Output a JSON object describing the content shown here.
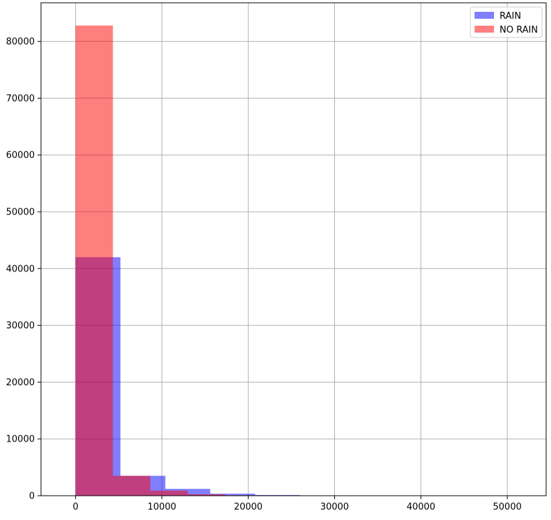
{
  "chart_data": {
    "type": "bar",
    "histogram": true,
    "overlay": true,
    "title": "",
    "xlabel": "",
    "ylabel": "",
    "xlim": [
      -4000,
      54500
    ],
    "ylim": [
      0,
      86800
    ],
    "xticks": [
      0,
      10000,
      20000,
      30000,
      40000,
      50000
    ],
    "yticks": [
      0,
      10000,
      20000,
      30000,
      40000,
      50000,
      60000,
      70000,
      80000
    ],
    "grid": true,
    "legend_position": "top-right",
    "series": [
      {
        "name": "RAIN",
        "color": "#0000ff",
        "alpha": 0.5,
        "bins": [
          {
            "x0": 0,
            "x1": 5200,
            "count": 42000
          },
          {
            "x0": 5200,
            "x1": 10400,
            "count": 3500
          },
          {
            "x0": 10400,
            "x1": 15600,
            "count": 1200
          },
          {
            "x0": 15600,
            "x1": 20800,
            "count": 350
          },
          {
            "x0": 20800,
            "x1": 26000,
            "count": 120
          },
          {
            "x0": 26000,
            "x1": 31200,
            "count": 50
          },
          {
            "x0": 31200,
            "x1": 36400,
            "count": 20
          },
          {
            "x0": 36400,
            "x1": 41600,
            "count": 10
          },
          {
            "x0": 41600,
            "x1": 46800,
            "count": 5
          },
          {
            "x0": 46800,
            "x1": 52000,
            "count": 2
          }
        ]
      },
      {
        "name": "NO RAIN",
        "color": "#ff0000",
        "alpha": 0.5,
        "bins": [
          {
            "x0": 0,
            "x1": 4330,
            "count": 82800
          },
          {
            "x0": 4330,
            "x1": 8660,
            "count": 3500
          },
          {
            "x0": 8660,
            "x1": 12990,
            "count": 900
          },
          {
            "x0": 12990,
            "x1": 17320,
            "count": 250
          },
          {
            "x0": 17320,
            "x1": 21650,
            "count": 80
          },
          {
            "x0": 21650,
            "x1": 25980,
            "count": 25
          },
          {
            "x0": 25980,
            "x1": 30310,
            "count": 10
          },
          {
            "x0": 30310,
            "x1": 34640,
            "count": 5
          },
          {
            "x0": 34640,
            "x1": 38970,
            "count": 2
          },
          {
            "x0": 38970,
            "x1": 43300,
            "count": 1
          }
        ]
      }
    ]
  }
}
